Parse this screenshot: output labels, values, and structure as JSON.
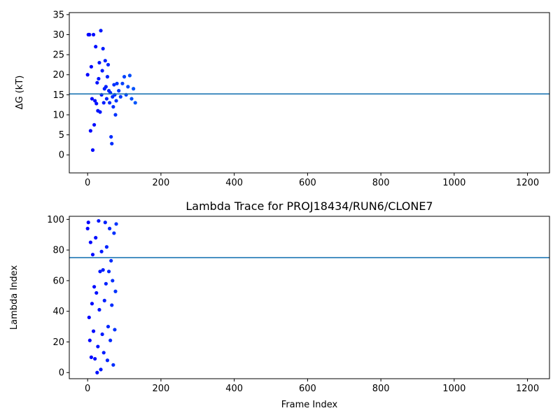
{
  "figure": {
    "background": "#ffffff",
    "hline_color": "#1f77b4",
    "colormap": "rainbow"
  },
  "chart_data": [
    {
      "type": "scatter",
      "title": "",
      "xlabel": "",
      "ylabel": "ΔG (kT)",
      "xlim": [
        -50,
        1260
      ],
      "ylim": [
        -4.5,
        35.5
      ],
      "xticks": [
        0,
        200,
        400,
        600,
        800,
        1000,
        1200
      ],
      "yticks": [
        0,
        5,
        10,
        15,
        20,
        25,
        30,
        35
      ],
      "hline": 15.2,
      "grid": false,
      "legend": "none",
      "color_by": "x",
      "points": [
        [
          0,
          20.0
        ],
        [
          2,
          30.0
        ],
        [
          5,
          30.0
        ],
        [
          8,
          6.0
        ],
        [
          10,
          22.0
        ],
        [
          12,
          14.0
        ],
        [
          14,
          1.2
        ],
        [
          16,
          30.0
        ],
        [
          18,
          7.5
        ],
        [
          20,
          13.5
        ],
        [
          22,
          27.0
        ],
        [
          24,
          12.8
        ],
        [
          26,
          18.0
        ],
        [
          28,
          11.0
        ],
        [
          30,
          19.0
        ],
        [
          32,
          23.0
        ],
        [
          34,
          10.7
        ],
        [
          36,
          31.0
        ],
        [
          38,
          15.0
        ],
        [
          40,
          21.0
        ],
        [
          42,
          26.5
        ],
        [
          44,
          13.0
        ],
        [
          46,
          16.5
        ],
        [
          48,
          23.5
        ],
        [
          50,
          17.0
        ],
        [
          52,
          14.0
        ],
        [
          54,
          19.5
        ],
        [
          56,
          22.5
        ],
        [
          58,
          16.0
        ],
        [
          60,
          13.0
        ],
        [
          62,
          15.5
        ],
        [
          64,
          4.5
        ],
        [
          66,
          2.8
        ],
        [
          68,
          14.5
        ],
        [
          70,
          12.0
        ],
        [
          72,
          17.5
        ],
        [
          74,
          15.0
        ],
        [
          76,
          10.0
        ],
        [
          78,
          13.5
        ],
        [
          80,
          17.8
        ],
        [
          85,
          16.0
        ],
        [
          90,
          14.5
        ],
        [
          95,
          17.8
        ],
        [
          100,
          19.5
        ],
        [
          105,
          15.0
        ],
        [
          110,
          17.0
        ],
        [
          115,
          19.8
        ],
        [
          120,
          14.0
        ],
        [
          125,
          16.5
        ],
        [
          130,
          13.0
        ]
      ]
    },
    {
      "type": "scatter",
      "title": "Lambda Trace for PROJ18434/RUN6/CLONE7",
      "xlabel": "Frame Index",
      "ylabel": "Lambda Index",
      "xlim": [
        -50,
        1260
      ],
      "ylim": [
        -4,
        102
      ],
      "xticks": [
        0,
        200,
        400,
        600,
        800,
        1000,
        1200
      ],
      "yticks": [
        0,
        20,
        40,
        60,
        80,
        100
      ],
      "hline": 75,
      "grid": false,
      "legend": "none",
      "color_by": "x",
      "points": [
        [
          0,
          94
        ],
        [
          2,
          98
        ],
        [
          4,
          36
        ],
        [
          6,
          21
        ],
        [
          8,
          85
        ],
        [
          10,
          10
        ],
        [
          12,
          45
        ],
        [
          14,
          77
        ],
        [
          16,
          27
        ],
        [
          18,
          56
        ],
        [
          20,
          9
        ],
        [
          22,
          88
        ],
        [
          24,
          52
        ],
        [
          26,
          0
        ],
        [
          28,
          17
        ],
        [
          30,
          99
        ],
        [
          32,
          41
        ],
        [
          34,
          66
        ],
        [
          36,
          2
        ],
        [
          38,
          79
        ],
        [
          40,
          25
        ],
        [
          42,
          67
        ],
        [
          44,
          13
        ],
        [
          46,
          47
        ],
        [
          48,
          98
        ],
        [
          50,
          58
        ],
        [
          52,
          82
        ],
        [
          54,
          8
        ],
        [
          56,
          30
        ],
        [
          58,
          66
        ],
        [
          60,
          94
        ],
        [
          62,
          21
        ],
        [
          64,
          73
        ],
        [
          66,
          44
        ],
        [
          68,
          60
        ],
        [
          70,
          5
        ],
        [
          72,
          91
        ],
        [
          74,
          28
        ],
        [
          76,
          53
        ],
        [
          78,
          97
        ]
      ]
    }
  ]
}
